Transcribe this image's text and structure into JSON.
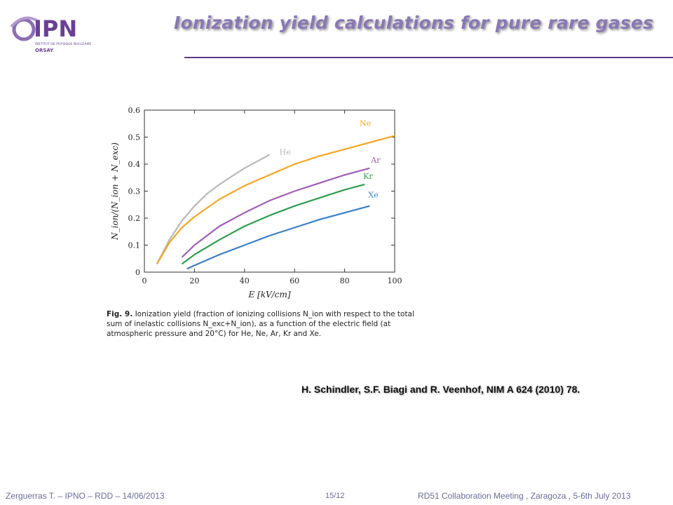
{
  "header": {
    "logo_text": "IPN",
    "logo_subtitle_1": "INSTITUT DE PHYSIQUE NUCLÉAIRE",
    "logo_subtitle_2": "ORSAY",
    "title": "Ionization yield calculations for pure rare gases"
  },
  "figure": {
    "caption_label": "Fig. 9.",
    "caption_text": "Ionization yield (fraction of ionizing collisions N_ion with respect to the total sum of inelastic collisions N_exc+N_ion), as a function of the electric field (at atmospheric pressure and 20°C) for He, Ne, Ar, Kr and Xe."
  },
  "reference": "H. Schindler, S.F. Biagi and R. Veenhof, NIM A 624 (2010) 78.",
  "footer": {
    "left": "Zerguerras T. – IPNO – RDD – 14/06/2013",
    "center": "15/12",
    "right": "RD51 Collaboration Meeting , Zaragoza , 5-6th July 2013"
  },
  "chart_data": {
    "type": "line",
    "xlabel": "E [kV/cm]",
    "ylabel": "N_ion/(N_ion + N_exc)",
    "xlim": [
      0,
      100
    ],
    "ylim": [
      0,
      0.6
    ],
    "xticks": [
      "0",
      "20",
      "40",
      "60",
      "80",
      "100"
    ],
    "yticks": [
      "0",
      "0.1",
      "0.2",
      "0.3",
      "0.4",
      "0.5",
      "0.6"
    ],
    "series": [
      {
        "name": "He",
        "color": "#b8b8b8",
        "x": [
          5,
          10,
          15,
          20,
          25,
          30,
          35,
          40,
          45,
          50
        ],
        "y": [
          0.03,
          0.12,
          0.19,
          0.245,
          0.29,
          0.325,
          0.355,
          0.385,
          0.41,
          0.435
        ]
      },
      {
        "name": "Ne",
        "color": "#f5a623",
        "x": [
          5,
          10,
          15,
          20,
          30,
          40,
          50,
          60,
          70,
          80,
          90,
          100
        ],
        "y": [
          0.03,
          0.11,
          0.165,
          0.205,
          0.27,
          0.32,
          0.36,
          0.4,
          0.43,
          0.455,
          0.48,
          0.505
        ]
      },
      {
        "name": "Ar",
        "color": "#a05eb5",
        "x": [
          15,
          20,
          30,
          40,
          50,
          60,
          70,
          80,
          90
        ],
        "y": [
          0.055,
          0.1,
          0.17,
          0.22,
          0.265,
          0.3,
          0.33,
          0.36,
          0.385
        ]
      },
      {
        "name": "Kr",
        "color": "#2e9e4f",
        "x": [
          15,
          20,
          30,
          40,
          50,
          60,
          70,
          80,
          88
        ],
        "y": [
          0.03,
          0.065,
          0.12,
          0.17,
          0.21,
          0.245,
          0.275,
          0.305,
          0.325
        ]
      },
      {
        "name": "Xe",
        "color": "#3a7fc4",
        "x": [
          17,
          20,
          30,
          40,
          50,
          60,
          70,
          80,
          90
        ],
        "y": [
          0.012,
          0.025,
          0.065,
          0.1,
          0.135,
          0.165,
          0.195,
          0.22,
          0.245
        ]
      }
    ]
  }
}
